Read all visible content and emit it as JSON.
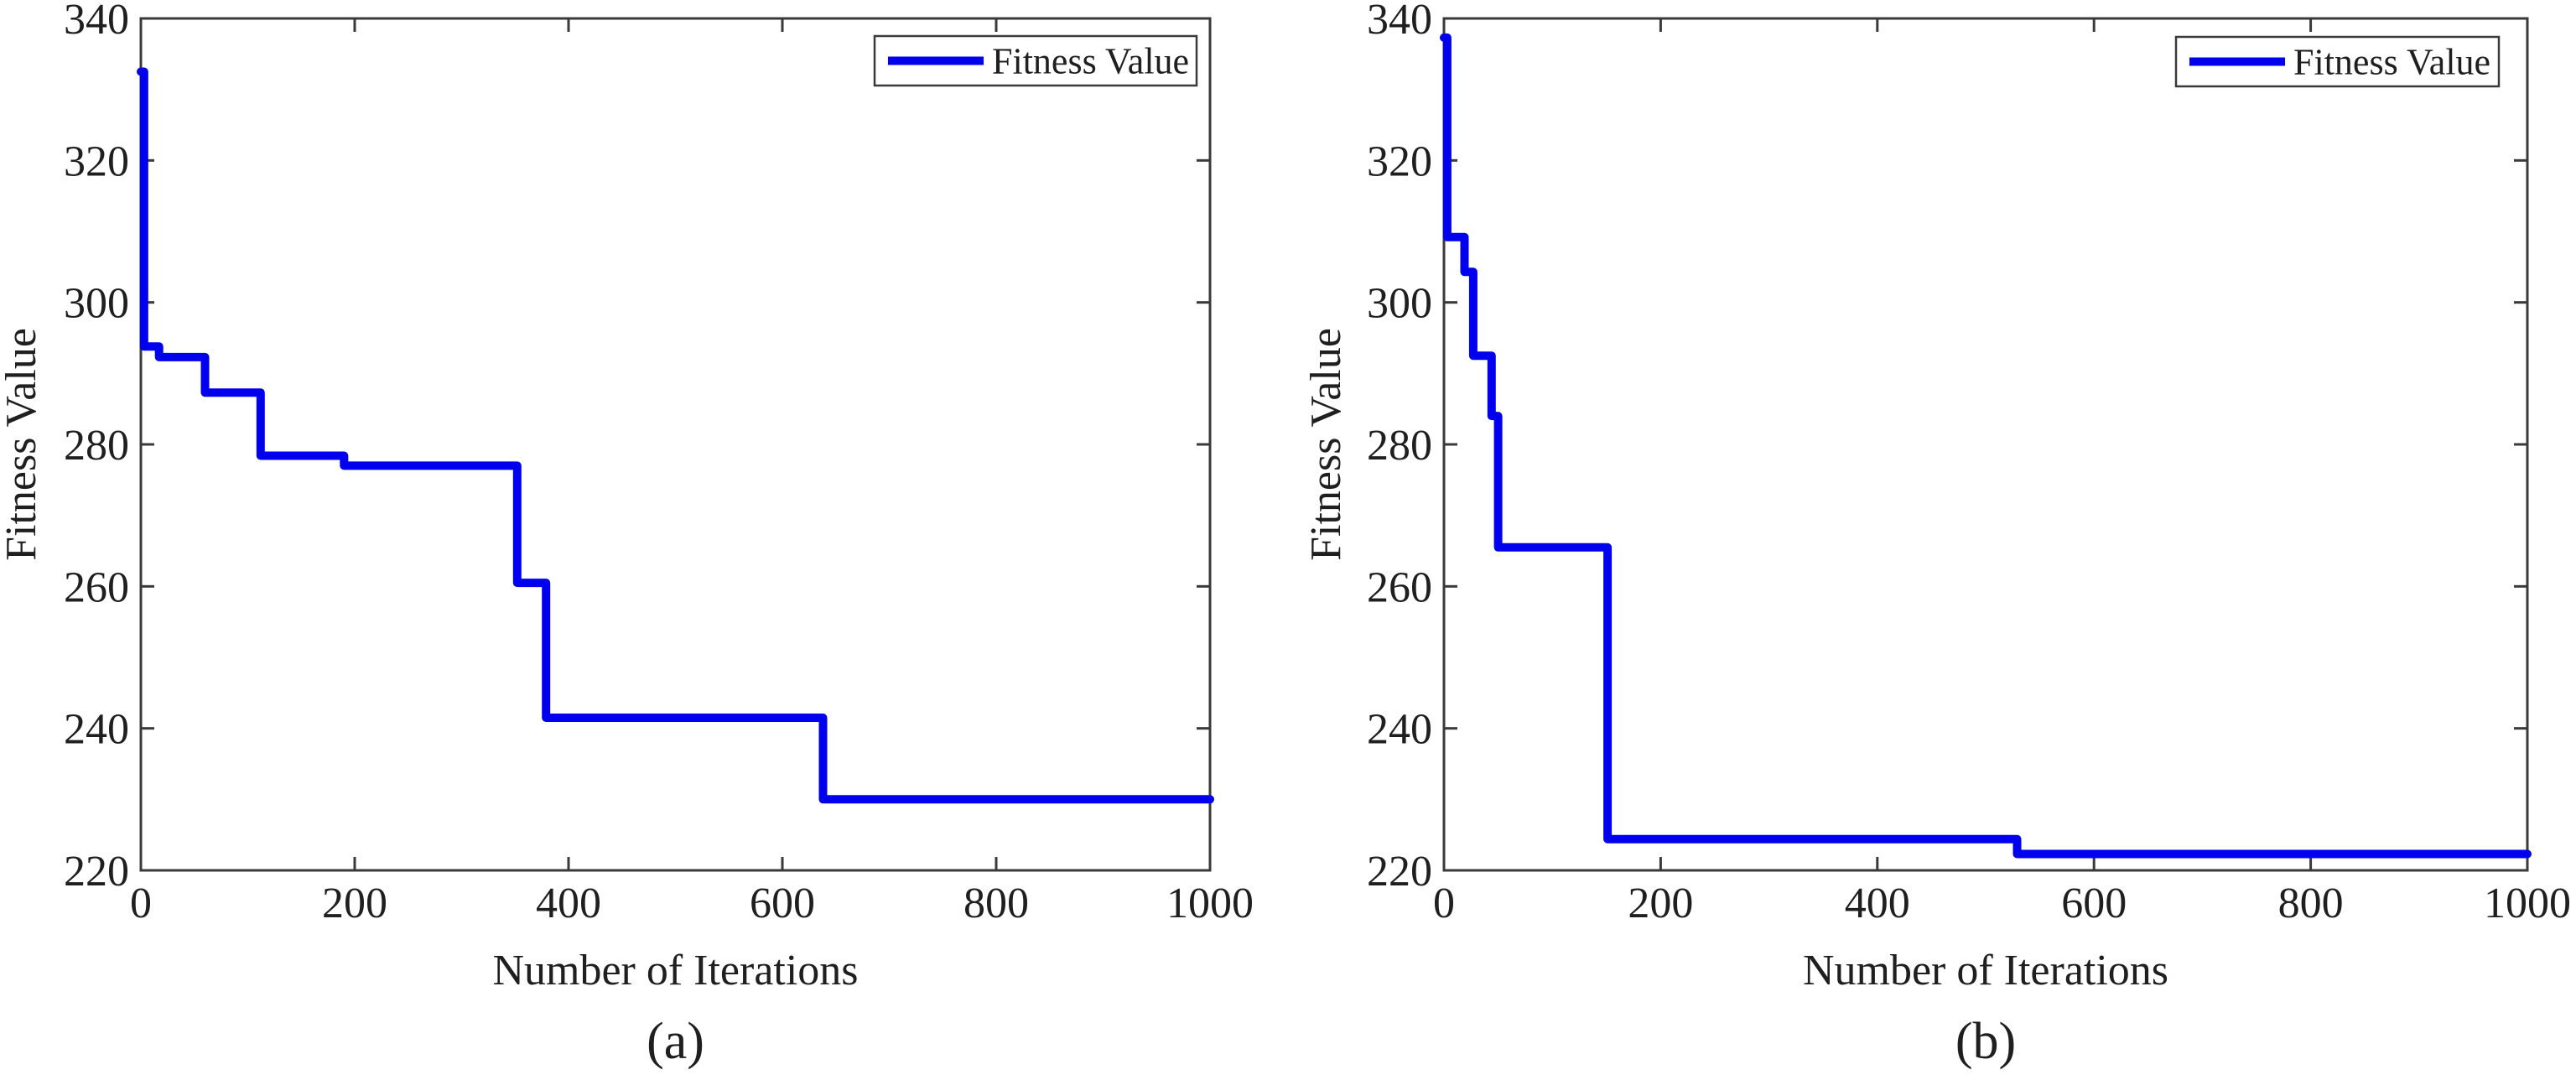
{
  "figure": {
    "background": "#ffffff",
    "text_color": "#1f1f1f",
    "axis_color": "#3a3a3a",
    "line_color": "#0000ee",
    "legend_label": "Fitness Value",
    "xlabel": "Number of Iterations",
    "ylabel": "Fitness Value",
    "captions": [
      "(a)",
      "(b)"
    ]
  },
  "chart_data": [
    {
      "type": "line",
      "subtype": "step-after",
      "caption": "(a)",
      "title": "",
      "xlabel": "Number of Iterations",
      "ylabel": "Fitness Value",
      "legend": [
        "Fitness Value"
      ],
      "legend_position": "top-right",
      "grid": false,
      "box": true,
      "tick_direction": "in",
      "xlim": [
        0,
        1000
      ],
      "ylim": [
        220,
        340
      ],
      "xticks": [
        0,
        200,
        400,
        600,
        800,
        1000
      ],
      "yticks": [
        220,
        240,
        260,
        280,
        300,
        320,
        340
      ],
      "series": [
        {
          "name": "Fitness Value",
          "color": "#0000ee",
          "step_points": [
            [
              0,
              332.5
            ],
            [
              3,
              293.8
            ],
            [
              17,
              292.3
            ],
            [
              60,
              287.3
            ],
            [
              112,
              278.4
            ],
            [
              190,
              277.0
            ],
            [
              352,
              260.5
            ],
            [
              379,
              241.5
            ],
            [
              638,
              230.0
            ],
            [
              1000,
              230.0
            ]
          ]
        }
      ]
    },
    {
      "type": "line",
      "subtype": "step-after",
      "caption": "(b)",
      "title": "",
      "xlabel": "Number of Iterations",
      "ylabel": "Fitness Value",
      "legend": [
        "Fitness Value"
      ],
      "legend_position": "top-right",
      "grid": false,
      "box": true,
      "tick_direction": "in",
      "xlim": [
        0,
        1000
      ],
      "ylim": [
        220,
        340
      ],
      "xticks": [
        0,
        200,
        400,
        600,
        800,
        1000
      ],
      "yticks": [
        220,
        240,
        260,
        280,
        300,
        320,
        340
      ],
      "series": [
        {
          "name": "Fitness Value",
          "color": "#0000ee",
          "step_points": [
            [
              0,
              337.3
            ],
            [
              3,
              309.2
            ],
            [
              19,
              304.3
            ],
            [
              27,
              292.5
            ],
            [
              44,
              284.0
            ],
            [
              50,
              265.5
            ],
            [
              151,
              224.4
            ],
            [
              529,
              222.3
            ],
            [
              1000,
              222.3
            ]
          ]
        }
      ]
    }
  ]
}
